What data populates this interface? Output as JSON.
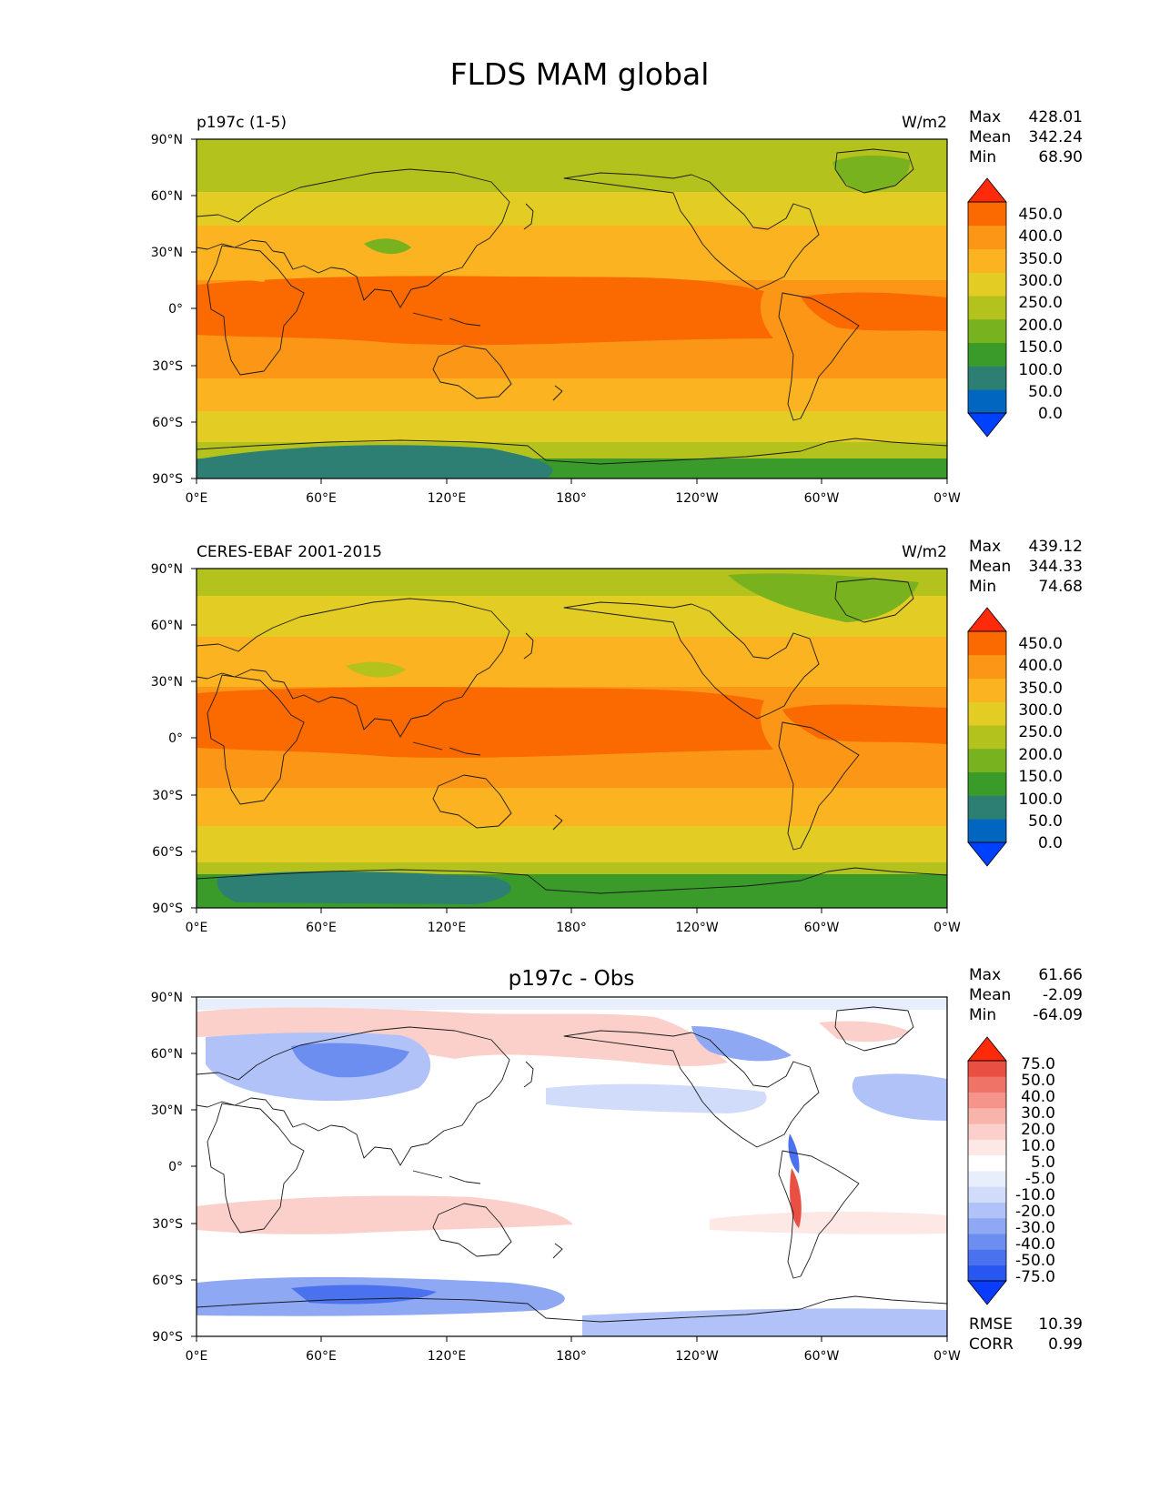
{
  "figure": {
    "title": "FLDS MAM global"
  },
  "axes": {
    "lat_ticks": [
      "90°N",
      "60°N",
      "30°N",
      "0°",
      "30°S",
      "60°S",
      "90°S"
    ],
    "lon_ticks": [
      "0°E",
      "60°E",
      "120°E",
      "180°",
      "120°W",
      "60°W",
      "0°W"
    ]
  },
  "colors": {
    "abs_levels": [
      "#0040ff",
      "#0066c0",
      "#2d7f73",
      "#3a9a2a",
      "#78b21e",
      "#b3c21c",
      "#e3cc24",
      "#fbb321",
      "#fb9616",
      "#fb6a00",
      "#ff2a0a"
    ],
    "diff_levels": [
      "#0a3cff",
      "#2856f0",
      "#4a72ee",
      "#6c8ef0",
      "#8ea8f4",
      "#b0c2f8",
      "#d0dcfa",
      "#e8eefc",
      "#ffffff",
      "#fde8e6",
      "#fbd0cb",
      "#f8b3ab",
      "#f4948a",
      "#ef7467",
      "#e94f42",
      "#ff2a0a"
    ],
    "coast": "#1a1a1a"
  },
  "chart_data": [
    {
      "type": "heatmap",
      "title": "p197c (1-5)",
      "units": "W/m2",
      "stats": [
        {
          "label": "Max",
          "value": "428.01"
        },
        {
          "label": "Mean",
          "value": "342.24"
        },
        {
          "label": "Min",
          "value": "68.90"
        }
      ],
      "colorbar_labels": [
        "450.0",
        "400.0",
        "350.0",
        "300.0",
        "250.0",
        "200.0",
        "150.0",
        "100.0",
        "50.0",
        "0.0"
      ],
      "xlim": [
        0,
        360
      ],
      "ylim": [
        -90,
        90
      ],
      "x_ticks": [
        0,
        60,
        120,
        180,
        240,
        300,
        360
      ],
      "y_ticks": [
        90,
        60,
        30,
        0,
        -30,
        -60,
        -90
      ]
    },
    {
      "type": "heatmap",
      "title": "CERES-EBAF 2001-2015",
      "units": "W/m2",
      "stats": [
        {
          "label": "Max",
          "value": "439.12"
        },
        {
          "label": "Mean",
          "value": "344.33"
        },
        {
          "label": "Min",
          "value": "74.68"
        }
      ],
      "colorbar_labels": [
        "450.0",
        "400.0",
        "350.0",
        "300.0",
        "250.0",
        "200.0",
        "150.0",
        "100.0",
        "50.0",
        "0.0"
      ],
      "xlim": [
        0,
        360
      ],
      "ylim": [
        -90,
        90
      ],
      "x_ticks": [
        0,
        60,
        120,
        180,
        240,
        300,
        360
      ],
      "y_ticks": [
        90,
        60,
        30,
        0,
        -30,
        -60,
        -90
      ]
    },
    {
      "type": "heatmap",
      "title": "p197c - Obs",
      "units": "",
      "stats": [
        {
          "label": "Max",
          "value": "61.66"
        },
        {
          "label": "Mean",
          "value": "-2.09"
        },
        {
          "label": "Min",
          "value": "-64.09"
        }
      ],
      "colorbar_labels": [
        "75.0",
        "50.0",
        "40.0",
        "30.0",
        "20.0",
        "10.0",
        "5.0",
        "-5.0",
        "-10.0",
        "-20.0",
        "-30.0",
        "-40.0",
        "-50.0",
        "-75.0"
      ],
      "metrics": [
        {
          "label": "RMSE",
          "value": "10.39"
        },
        {
          "label": "CORR",
          "value": "0.99"
        }
      ],
      "xlim": [
        0,
        360
      ],
      "ylim": [
        -90,
        90
      ],
      "x_ticks": [
        0,
        60,
        120,
        180,
        240,
        300,
        360
      ],
      "y_ticks": [
        90,
        60,
        30,
        0,
        -30,
        -60,
        -90
      ]
    }
  ]
}
